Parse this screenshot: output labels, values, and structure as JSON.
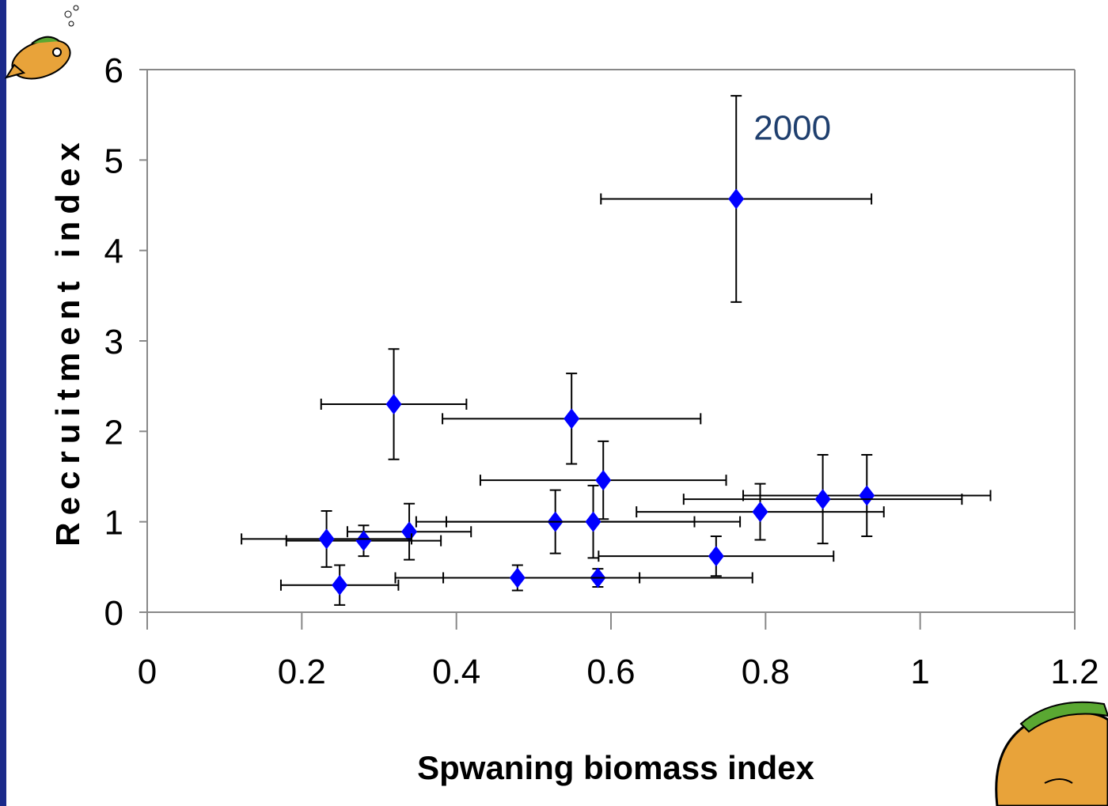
{
  "chart_data": {
    "type": "scatter",
    "xlabel": "Spwaning biomass index",
    "ylabel": "Recruitment index",
    "annotations": [
      "2000"
    ],
    "xlim": [
      0,
      1.2
    ],
    "xticks": [
      0,
      0.2,
      0.4,
      0.6,
      0.8,
      1,
      1.2
    ],
    "ylim": [
      0,
      6
    ],
    "yticks": [
      0,
      1,
      2,
      3,
      4,
      5,
      6
    ],
    "grid": false,
    "series": [
      {
        "color": "#0000ff",
        "error_color": "#000000",
        "x": [
          0.762,
          0.319,
          0.549,
          0.59,
          0.931,
          0.874,
          0.793,
          0.528,
          0.577,
          0.339,
          0.28,
          0.232,
          0.736,
          0.583,
          0.479,
          0.249
        ],
        "values": [
          4.57,
          2.3,
          2.14,
          1.46,
          1.29,
          1.25,
          1.11,
          1.0,
          1.0,
          0.89,
          0.79,
          0.81,
          0.62,
          0.38,
          0.38,
          0.3
        ],
        "x_errors": [
          0.175,
          0.094,
          0.167,
          0.159,
          0.16,
          0.18,
          0.16,
          0.18,
          0.19,
          0.08,
          0.1,
          0.11,
          0.152,
          0.2,
          0.158,
          0.076
        ],
        "y_errors": [
          1.14,
          0.61,
          0.5,
          0.43,
          0.45,
          0.49,
          0.31,
          0.35,
          0.4,
          0.31,
          0.17,
          0.31,
          0.22,
          0.1,
          0.14,
          0.22
        ]
      }
    ]
  }
}
